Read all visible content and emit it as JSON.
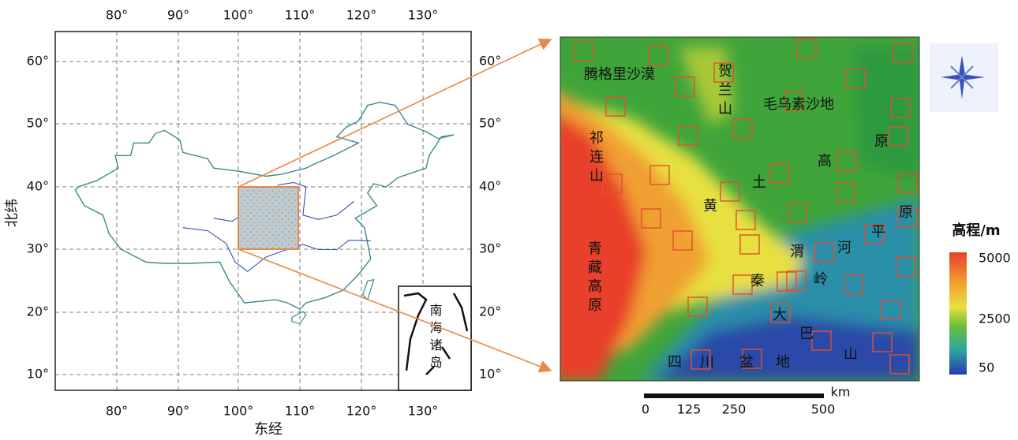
{
  "left_map": {
    "lon_labels": [
      "80°",
      "90°",
      "100°",
      "110°",
      "120°",
      "130°"
    ],
    "lat_labels": [
      "60°",
      "50°",
      "40°",
      "30°",
      "20°",
      "10°"
    ],
    "x_axis_title": "东经",
    "y_axis_title": "北纬",
    "inset_label": "南海诸岛"
  },
  "right_map": {
    "labels": [
      "腾格里沙漠",
      "贺兰山",
      "毛乌素沙地",
      "祁连山",
      "青藏高原",
      "黄",
      "土",
      "高",
      "原",
      "原",
      "平",
      "渭",
      "河",
      "秦",
      "岭",
      "大",
      "巴",
      "山",
      "四",
      "川",
      "盆",
      "地"
    ]
  },
  "legend": {
    "title": "高程/m",
    "labels": [
      "5000",
      "2500",
      "50"
    ]
  },
  "scale_bar": {
    "labels": [
      "0",
      "125",
      "250",
      "500"
    ],
    "unit": "km"
  }
}
